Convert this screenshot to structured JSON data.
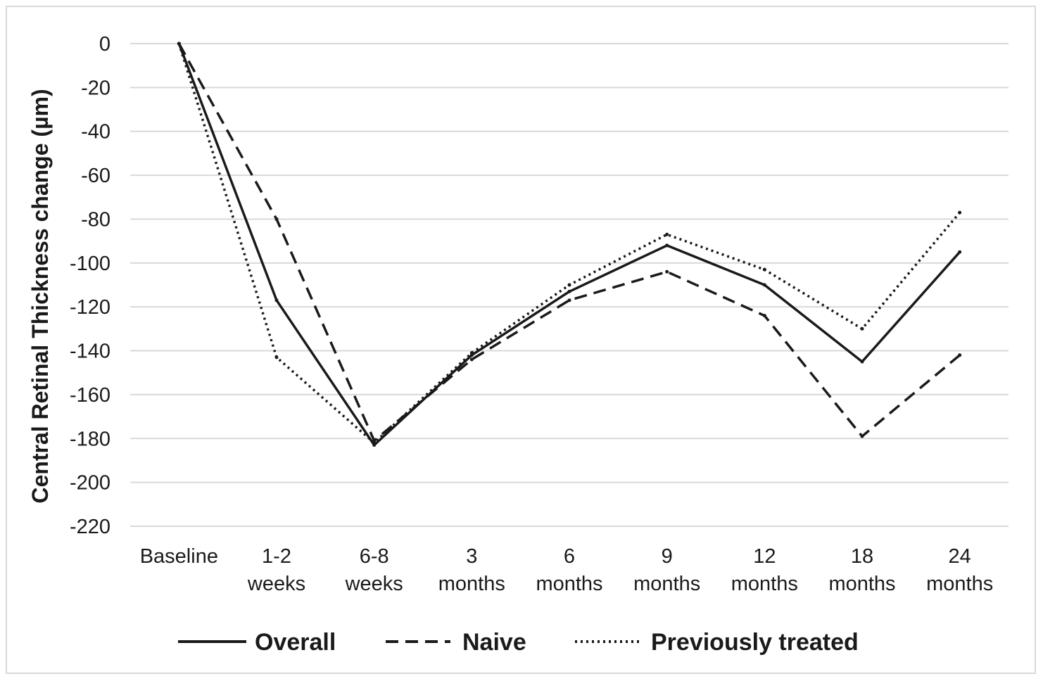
{
  "chart_data": {
    "type": "line",
    "ylabel": "Central Retinal Thickness change (µm)",
    "xlabel": "",
    "categories": [
      [
        "Baseline"
      ],
      [
        "1-2",
        "weeks"
      ],
      [
        "6-8",
        "weeks"
      ],
      [
        "3",
        "months"
      ],
      [
        "6",
        "months"
      ],
      [
        "9",
        "months"
      ],
      [
        "12",
        "months"
      ],
      [
        "18",
        "months"
      ],
      [
        "24",
        "months"
      ]
    ],
    "ylim": [
      -220,
      0
    ],
    "yticks": [
      0,
      -20,
      -40,
      -60,
      -80,
      -100,
      -120,
      -140,
      -160,
      -180,
      -200,
      -220
    ],
    "grid": true,
    "legend_position": "bottom",
    "series": [
      {
        "name": "Overall",
        "style": "solid",
        "values": [
          0,
          -117,
          -183,
          -142,
          -113,
          -92,
          -110,
          -145,
          -95
        ]
      },
      {
        "name": "Naive",
        "style": "dashed",
        "values": [
          0,
          -80,
          -181,
          -144,
          -117,
          -104,
          -124,
          -179,
          -142
        ]
      },
      {
        "name": "Previously treated",
        "style": "dotted",
        "values": [
          0,
          -143,
          -182,
          -141,
          -110,
          -87,
          -103,
          -130,
          -77
        ]
      }
    ],
    "colors": {
      "line": "#1a1a1a",
      "grid": "#d9d9d9"
    }
  }
}
